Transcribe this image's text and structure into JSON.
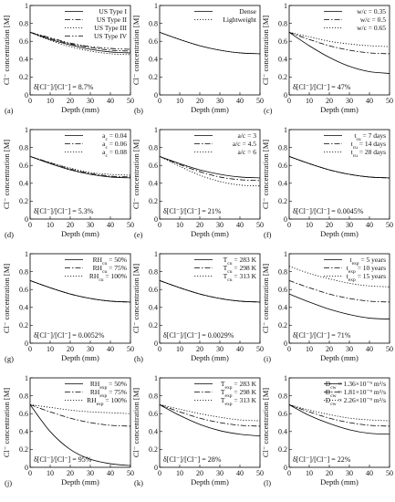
{
  "chart_data": [
    {
      "type": "line",
      "letter": "(a)",
      "xlabel": "Depth (mm)",
      "ylabel": "Cl⁻ concentration  [M]",
      "xlim": [
        0,
        50
      ],
      "ylim": [
        0,
        1
      ],
      "xticks": [
        "0",
        "10",
        "20",
        "30",
        "40",
        "50"
      ],
      "yticks": [
        "0",
        "0.2",
        "0.4",
        "0.6",
        "0.8",
        "1"
      ],
      "annotation": "δ[Cl⁻]/[Cl⁻] = 8.7%",
      "legend": "top-right",
      "x": [
        0,
        10,
        20,
        30,
        40,
        50
      ],
      "series": [
        {
          "name": "US Type I",
          "style": "solid",
          "values": [
            0.7,
            0.62,
            0.56,
            0.51,
            0.48,
            0.47
          ]
        },
        {
          "name": "US Type II",
          "style": "dashdot",
          "values": [
            0.7,
            0.63,
            0.57,
            0.53,
            0.5,
            0.49
          ]
        },
        {
          "name": "US Type III",
          "style": "dotted",
          "values": [
            0.7,
            0.61,
            0.54,
            0.49,
            0.46,
            0.45
          ]
        },
        {
          "name": "US Type IV",
          "style": "dashdotdot",
          "values": [
            0.7,
            0.64,
            0.58,
            0.54,
            0.52,
            0.51
          ]
        }
      ]
    },
    {
      "type": "line",
      "letter": "(b)",
      "xlabel": "Depth (mm)",
      "ylabel": "Cl⁻ concentration  [M]",
      "xlim": [
        0,
        50
      ],
      "ylim": [
        0,
        1
      ],
      "xticks": [
        "0",
        "10",
        "20",
        "30",
        "40",
        "50"
      ],
      "yticks": [
        "0",
        "0.2",
        "0.4",
        "0.6",
        "0.8",
        "1"
      ],
      "annotation": "",
      "legend": "top-right",
      "x": [
        0,
        10,
        20,
        30,
        40,
        50
      ],
      "series": [
        {
          "name": "Dense",
          "style": "solid",
          "values": [
            0.7,
            0.62,
            0.55,
            0.5,
            0.47,
            0.46
          ]
        },
        {
          "name": "Lightweight",
          "style": "dotted",
          "values": [
            0.7,
            0.62,
            0.55,
            0.5,
            0.47,
            0.46
          ]
        }
      ]
    },
    {
      "type": "line",
      "letter": "(c)",
      "xlabel": "Depth (mm)",
      "ylabel": "Cl⁻ concentration  [M]",
      "xlim": [
        0,
        50
      ],
      "ylim": [
        0,
        1
      ],
      "xticks": [
        "0",
        "10",
        "20",
        "30",
        "40",
        "50"
      ],
      "yticks": [
        "0",
        "0.2",
        "0.4",
        "0.6",
        "0.8",
        "1"
      ],
      "annotation": "δ[Cl⁻]/[Cl⁻] = 47%",
      "legend": "top-right",
      "x": [
        0,
        10,
        20,
        30,
        40,
        50
      ],
      "series": [
        {
          "name": "w/c = 0.35",
          "style": "solid",
          "values": [
            0.7,
            0.55,
            0.42,
            0.32,
            0.26,
            0.24
          ]
        },
        {
          "name": "w/c = 0.5",
          "style": "dashdot",
          "values": [
            0.7,
            0.62,
            0.55,
            0.5,
            0.47,
            0.46
          ]
        },
        {
          "name": "w/c = 0.65",
          "style": "dotted",
          "values": [
            0.7,
            0.65,
            0.6,
            0.57,
            0.55,
            0.54
          ]
        }
      ]
    },
    {
      "type": "line",
      "letter": "(d)",
      "xlabel": "Depth (mm)",
      "ylabel": "Cl⁻ concentration  [M]",
      "xlim": [
        0,
        50
      ],
      "ylim": [
        0,
        1
      ],
      "xticks": [
        "0",
        "10",
        "20",
        "30",
        "40",
        "50"
      ],
      "yticks": [
        "0",
        "0.2",
        "0.4",
        "0.6",
        "0.8",
        "1"
      ],
      "annotation": "δ[Cl⁻]/[Cl⁻] = 5.3%",
      "legend": "top-right",
      "x": [
        0,
        10,
        20,
        30,
        40,
        50
      ],
      "series": [
        {
          "name": "a_c = 0.04",
          "label": "a",
          "sub": "c",
          "suffix": " = 0.04",
          "style": "solid",
          "values": [
            0.7,
            0.62,
            0.55,
            0.5,
            0.47,
            0.46
          ]
        },
        {
          "name": "a_c = 0.06",
          "label": "a",
          "sub": "c",
          "suffix": " = 0.06",
          "style": "dashdot",
          "values": [
            0.7,
            0.63,
            0.56,
            0.51,
            0.48,
            0.47
          ]
        },
        {
          "name": "a_c = 0.08",
          "label": "a",
          "sub": "c",
          "suffix": " = 0.08",
          "style": "dotted",
          "values": [
            0.7,
            0.63,
            0.57,
            0.52,
            0.5,
            0.49
          ]
        }
      ]
    },
    {
      "type": "line",
      "letter": "(e)",
      "xlabel": "Depth (mm)",
      "ylabel": "Cl⁻ concentration  [M]",
      "xlim": [
        0,
        50
      ],
      "ylim": [
        0,
        1
      ],
      "xticks": [
        "0",
        "10",
        "20",
        "30",
        "40",
        "50"
      ],
      "yticks": [
        "0",
        "0.2",
        "0.4",
        "0.6",
        "0.8",
        "1"
      ],
      "annotation": "δ[Cl⁻]/[Cl⁻] = 21%",
      "legend": "top-right",
      "x": [
        0,
        10,
        20,
        30,
        40,
        50
      ],
      "series": [
        {
          "name": "a/c = 3",
          "style": "solid",
          "values": [
            0.7,
            0.62,
            0.55,
            0.5,
            0.47,
            0.46
          ]
        },
        {
          "name": "a/c = 4.5",
          "style": "dashdot",
          "values": [
            0.7,
            0.61,
            0.53,
            0.47,
            0.44,
            0.43
          ]
        },
        {
          "name": "a/c = 6",
          "style": "dotted",
          "values": [
            0.7,
            0.59,
            0.49,
            0.42,
            0.38,
            0.37
          ]
        }
      ]
    },
    {
      "type": "line",
      "letter": "(f)",
      "xlabel": "Depth (mm)",
      "ylabel": "Cl⁻ concentration  [M]",
      "xlim": [
        0,
        50
      ],
      "ylim": [
        0,
        1
      ],
      "xticks": [
        "0",
        "10",
        "20",
        "30",
        "40",
        "50"
      ],
      "yticks": [
        "0",
        "0.2",
        "0.4",
        "0.6",
        "0.8",
        "1"
      ],
      "annotation": "δ[Cl⁻]/[Cl⁻] = 0.0045%",
      "legend": "top-right",
      "x": [
        0,
        10,
        20,
        30,
        40,
        50
      ],
      "series": [
        {
          "name": "t_cu = 7 days",
          "label": "t",
          "sub": "cu",
          "suffix": " = 7 days",
          "style": "solid",
          "values": [
            0.7,
            0.62,
            0.55,
            0.5,
            0.47,
            0.46
          ]
        },
        {
          "name": "t_cu = 14 days",
          "label": "t",
          "sub": "cu",
          "suffix": " = 14 days",
          "style": "dashdot",
          "values": [
            0.7,
            0.62,
            0.55,
            0.5,
            0.47,
            0.46
          ]
        },
        {
          "name": "t_cu = 28 days",
          "label": "t",
          "sub": "cu",
          "suffix": " = 28 days",
          "style": "dotted",
          "values": [
            0.7,
            0.62,
            0.55,
            0.5,
            0.47,
            0.46
          ]
        }
      ]
    },
    {
      "type": "line",
      "letter": "(g)",
      "xlabel": "Depth (mm)",
      "ylabel": "Cl⁻ concentration  [M]",
      "xlim": [
        0,
        50
      ],
      "ylim": [
        0,
        1
      ],
      "xticks": [
        "0",
        "10",
        "20",
        "30",
        "40",
        "50"
      ],
      "yticks": [
        "0",
        "0.2",
        "0.4",
        "0.6",
        "0.8",
        "1"
      ],
      "annotation": "δ[Cl⁻]/[Cl⁻] = 0.0052%",
      "legend": "top-right",
      "x": [
        0,
        10,
        20,
        30,
        40,
        50
      ],
      "series": [
        {
          "name": "RH_cu = 50%",
          "label": "RH",
          "sub": "cu",
          "suffix": " = 50%",
          "style": "solid",
          "values": [
            0.7,
            0.62,
            0.55,
            0.5,
            0.47,
            0.46
          ]
        },
        {
          "name": "RH_cu = 75%",
          "label": "RH",
          "sub": "cu",
          "suffix": " = 75%",
          "style": "dashdot",
          "values": [
            0.7,
            0.62,
            0.55,
            0.5,
            0.47,
            0.46
          ]
        },
        {
          "name": "RH_cu = 100%",
          "label": "RH",
          "sub": "cu",
          "suffix": " = 100%",
          "style": "dotted",
          "values": [
            0.7,
            0.62,
            0.55,
            0.5,
            0.47,
            0.46
          ]
        }
      ]
    },
    {
      "type": "line",
      "letter": "(h)",
      "xlabel": "Depth (mm)",
      "ylabel": "Cl⁻ concentration  [M]",
      "xlim": [
        0,
        50
      ],
      "ylim": [
        0,
        1
      ],
      "xticks": [
        "0",
        "10",
        "20",
        "30",
        "40",
        "50"
      ],
      "yticks": [
        "0",
        "0.2",
        "0.4",
        "0.6",
        "0.8",
        "1"
      ],
      "annotation": "δ[Cl⁻]/[Cl⁻] = 0.0029%",
      "legend": "top-right",
      "x": [
        0,
        10,
        20,
        30,
        40,
        50
      ],
      "series": [
        {
          "name": "T_cu = 283 K",
          "label": "T",
          "sub": "cu",
          "suffix": " = 283 K",
          "style": "solid",
          "values": [
            0.7,
            0.62,
            0.55,
            0.5,
            0.47,
            0.46
          ]
        },
        {
          "name": "T_cu = 298 K",
          "label": "T",
          "sub": "cu",
          "suffix": " = 298 K",
          "style": "dashdot",
          "values": [
            0.7,
            0.62,
            0.55,
            0.5,
            0.47,
            0.46
          ]
        },
        {
          "name": "T_cu = 313 K",
          "label": "T",
          "sub": "cu",
          "suffix": " = 313 K",
          "style": "dotted",
          "values": [
            0.7,
            0.62,
            0.55,
            0.5,
            0.47,
            0.46
          ]
        }
      ]
    },
    {
      "type": "line",
      "letter": "(i)",
      "xlabel": "Depth (mm)",
      "ylabel": "Cl⁻ concentration  [M]",
      "xlim": [
        0,
        50
      ],
      "ylim": [
        0,
        1
      ],
      "xticks": [
        "0",
        "10",
        "20",
        "30",
        "40",
        "50"
      ],
      "yticks": [
        "0",
        "0.2",
        "0.4",
        "0.6",
        "0.8",
        "1"
      ],
      "annotation": "δ[Cl⁻]/[Cl⁻] = 71%",
      "legend": "top-right",
      "x": [
        0,
        10,
        20,
        30,
        40,
        50
      ],
      "series": [
        {
          "name": "t_exp = 5 years",
          "label": "t",
          "sub": "exp",
          "suffix": " = 5 years",
          "style": "solid",
          "values": [
            0.55,
            0.46,
            0.38,
            0.32,
            0.28,
            0.27
          ]
        },
        {
          "name": "t_exp = 10 years",
          "label": "t",
          "sub": "exp",
          "suffix": " = 10 years",
          "style": "dashdot",
          "values": [
            0.7,
            0.62,
            0.55,
            0.5,
            0.47,
            0.46
          ]
        },
        {
          "name": "t_exp = 15 years",
          "label": "t",
          "sub": "exp",
          "suffix": " = 15 years",
          "style": "dotted",
          "values": [
            0.86,
            0.78,
            0.72,
            0.67,
            0.64,
            0.63
          ]
        }
      ]
    },
    {
      "type": "line",
      "letter": "(j)",
      "xlabel": "Depth (mm)",
      "ylabel": "Cl⁻ concentration  [M]",
      "xlim": [
        0,
        50
      ],
      "ylim": [
        0,
        1
      ],
      "xticks": [
        "0",
        "10",
        "20",
        "30",
        "40",
        "50"
      ],
      "yticks": [
        "0",
        "0.2",
        "0.4",
        "0.6",
        "0.8",
        "1"
      ],
      "annotation": "δ[Cl⁻]/[Cl⁻] = 95%",
      "legend": "top-right",
      "x": [
        0,
        10,
        20,
        30,
        40,
        50
      ],
      "series": [
        {
          "name": "RH_exp = 50%",
          "label": "RH",
          "sub": "exp",
          "suffix": " = 50%",
          "style": "solid",
          "values": [
            0.7,
            0.4,
            0.2,
            0.09,
            0.04,
            0.02
          ]
        },
        {
          "name": "RH_exp = 75%",
          "label": "RH",
          "sub": "exp",
          "suffix": " = 75%",
          "style": "dashdot",
          "values": [
            0.7,
            0.62,
            0.55,
            0.5,
            0.47,
            0.46
          ]
        },
        {
          "name": "RH_exp = 100%",
          "label": "RH",
          "sub": "exp",
          "suffix": " = 100%",
          "style": "dotted",
          "values": [
            0.7,
            0.67,
            0.64,
            0.62,
            0.61,
            0.6
          ]
        }
      ]
    },
    {
      "type": "line",
      "letter": "(k)",
      "xlabel": "Depth (mm)",
      "ylabel": "Cl⁻ concentration  [M]",
      "xlim": [
        0,
        50
      ],
      "ylim": [
        0,
        1
      ],
      "xticks": [
        "0",
        "10",
        "20",
        "30",
        "40",
        "50"
      ],
      "yticks": [
        "0",
        "0.2",
        "0.4",
        "0.6",
        "0.8",
        "1"
      ],
      "annotation": "δ[Cl⁻]/[Cl⁻] = 28%",
      "legend": "top-right",
      "x": [
        0,
        10,
        20,
        30,
        40,
        50
      ],
      "series": [
        {
          "name": "T_exp = 283 K",
          "label": "T",
          "sub": "exp",
          "suffix": " = 283 K",
          "style": "solid",
          "values": [
            0.7,
            0.58,
            0.48,
            0.41,
            0.37,
            0.35
          ]
        },
        {
          "name": "T_exp = 298 K",
          "label": "T",
          "sub": "exp",
          "suffix": " = 298 K",
          "style": "dashdot",
          "values": [
            0.7,
            0.62,
            0.55,
            0.5,
            0.47,
            0.46
          ]
        },
        {
          "name": "T_exp = 313 K",
          "label": "T",
          "sub": "exp",
          "suffix": " = 313 K",
          "style": "dotted",
          "values": [
            0.7,
            0.65,
            0.6,
            0.56,
            0.53,
            0.52
          ]
        }
      ]
    },
    {
      "type": "line",
      "letter": "(l)",
      "xlabel": "Depth (mm)",
      "ylabel": "Cl⁻ concentration  [M]",
      "xlim": [
        0,
        50
      ],
      "ylim": [
        0,
        1
      ],
      "xticks": [
        "0",
        "10",
        "20",
        "30",
        "40",
        "50"
      ],
      "yticks": [
        "0",
        "0.2",
        "0.4",
        "0.6",
        "0.8",
        "1"
      ],
      "annotation": "δ[Cl⁻]/[Cl⁻] = 22%",
      "legend": "top-right",
      "x": [
        0,
        10,
        20,
        30,
        40,
        50
      ],
      "series": [
        {
          "name": "D_cw = 1.36×10⁻⁹ m²/s",
          "label": "D",
          "sub": "cw",
          "suffix": " = 1.36×10⁻⁹ m²/s",
          "style": "solid",
          "values": [
            0.7,
            0.58,
            0.49,
            0.42,
            0.38,
            0.37
          ]
        },
        {
          "name": "D_cw = 1.81×10⁻⁹ m²/s",
          "label": "D",
          "sub": "cw",
          "suffix": " = 1.81×10⁻⁹ m²/s",
          "style": "dashdot",
          "values": [
            0.7,
            0.62,
            0.55,
            0.5,
            0.47,
            0.46
          ]
        },
        {
          "name": "D_cw = 2.26×10⁻⁹ m²/s",
          "label": "D",
          "sub": "cw",
          "suffix": " = 2.26×10⁻⁹ m²/s",
          "style": "dotted",
          "values": [
            0.7,
            0.64,
            0.59,
            0.55,
            0.53,
            0.52
          ]
        }
      ]
    }
  ]
}
